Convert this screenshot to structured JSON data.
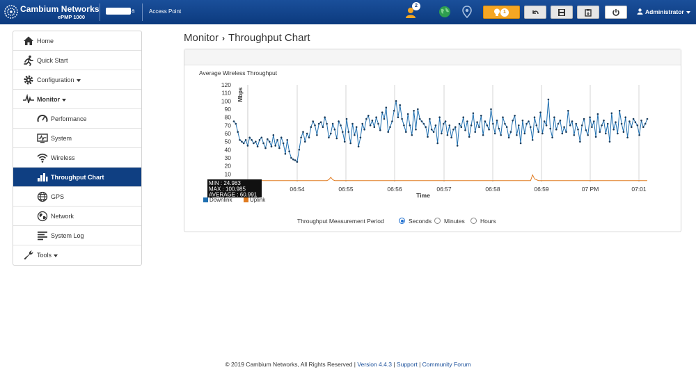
{
  "header": {
    "brand": "Cambium Networks",
    "model": "ePMP 1000",
    "device_name_tail": "a",
    "mode": "Access Point",
    "notification_count": "2",
    "alert_count": "1",
    "user": "Administrator"
  },
  "sidebar": {
    "items": [
      {
        "label": "Home",
        "icon": "home-icon",
        "level": "top"
      },
      {
        "label": "Quick Start",
        "icon": "running-man-icon",
        "level": "top"
      },
      {
        "label": "Configuration",
        "icon": "gear-icon",
        "level": "top",
        "dropdown": true
      },
      {
        "label": "Monitor",
        "icon": "pulse-icon",
        "level": "top",
        "dropdown": true
      },
      {
        "label": "Performance",
        "icon": "gauge-icon",
        "level": "sub"
      },
      {
        "label": "System",
        "icon": "system-monitor-icon",
        "level": "sub"
      },
      {
        "label": "Wireless",
        "icon": "wifi-icon",
        "level": "sub"
      },
      {
        "label": "Throughput Chart",
        "icon": "bar-chart-icon",
        "level": "sub",
        "active": true
      },
      {
        "label": "GPS",
        "icon": "globe-icon",
        "level": "sub"
      },
      {
        "label": "Network",
        "icon": "network-globe-icon",
        "level": "sub"
      },
      {
        "label": "System Log",
        "icon": "log-lines-icon",
        "level": "sub"
      },
      {
        "label": "Tools",
        "icon": "wrench-icon",
        "level": "top",
        "dropdown": true
      }
    ]
  },
  "breadcrumb": {
    "parent": "Monitor",
    "current": "Throughput Chart"
  },
  "chart_data": {
    "type": "line",
    "title": "Average Wireless Throughput",
    "xlabel": "Time",
    "ylabel": "Mbps",
    "ylim": [
      0,
      120
    ],
    "yticks": [
      10,
      20,
      30,
      40,
      50,
      60,
      70,
      80,
      90,
      100,
      110,
      120
    ],
    "xticks": [
      "06:54",
      "06:55",
      "06:56",
      "06:57",
      "06:58",
      "06:59",
      "07 PM",
      "07:01"
    ],
    "grid": "vertical",
    "legend_position": "bottom-left",
    "tooltip": {
      "min": "MIN : 24.983",
      "max": "MAX : 100.985",
      "avg": "AVERAGE : 60.991"
    },
    "series": [
      {
        "name": "Downlink",
        "color": "#1f6fb0",
        "values": [
          75,
          72,
          62,
          52,
          50,
          48,
          52,
          45,
          55,
          52,
          48,
          50,
          44,
          52,
          55,
          48,
          42,
          53,
          50,
          44,
          58,
          45,
          52,
          42,
          55,
          48,
          35,
          52,
          38,
          30,
          28,
          27,
          25,
          40,
          55,
          62,
          50,
          60,
          55,
          68,
          75,
          70,
          58,
          72,
          74,
          68,
          80,
          72,
          55,
          60,
          72,
          65,
          54,
          75,
          70,
          62,
          50,
          78,
          62,
          48,
          72,
          58,
          68,
          44,
          55,
          72,
          65,
          78,
          82,
          70,
          76,
          68,
          80,
          72,
          64,
          86,
          78,
          92,
          62,
          68,
          75,
          88,
          100,
          80,
          95,
          78,
          70,
          62,
          84,
          70,
          58,
          88,
          65,
          90,
          78,
          75,
          72,
          68,
          56,
          78,
          65,
          62,
          70,
          48,
          80,
          60,
          72,
          75,
          58,
          70,
          55,
          65,
          68,
          45,
          72,
          68,
          80,
          64,
          75,
          56,
          70,
          85,
          62,
          74,
          68,
          82,
          58,
          75,
          70,
          65,
          90,
          72,
          60,
          76,
          66,
          58,
          80,
          72,
          68,
          55,
          62,
          76,
          82,
          58,
          70,
          48,
          76,
          60,
          72,
          75,
          68,
          52,
          80,
          70,
          62,
          86,
          60,
          75,
          70,
          102,
          66,
          55,
          80,
          65,
          72,
          76,
          60,
          68,
          62,
          88,
          70,
          75,
          58,
          72,
          65,
          50,
          70,
          78,
          64,
          58,
          80,
          68,
          75,
          56,
          84,
          62,
          70,
          76,
          60,
          72,
          50,
          85,
          65,
          74,
          60,
          88,
          72,
          62,
          80,
          55,
          75,
          68,
          78,
          74,
          70,
          58,
          76,
          68,
          72,
          78
        ]
      },
      {
        "name": "Uplink",
        "color": "#e07b20",
        "values": [
          2,
          2,
          2,
          2,
          2,
          2,
          2,
          2,
          2,
          2,
          2,
          2,
          2,
          2,
          2,
          2,
          2,
          2,
          2,
          2,
          2,
          2,
          2,
          2,
          2,
          2,
          2,
          2,
          2,
          2,
          2,
          2,
          2,
          2,
          2,
          2,
          2,
          2,
          2,
          2,
          2,
          2,
          2,
          2,
          2,
          2,
          2,
          2,
          3,
          6,
          3,
          2,
          2,
          2,
          2,
          2,
          2,
          2,
          2,
          2,
          2,
          2,
          2,
          2,
          2,
          2,
          2,
          2,
          2,
          2,
          2,
          2,
          2,
          2,
          2,
          2,
          2,
          2,
          2,
          2,
          2,
          2,
          2,
          2,
          2,
          2,
          2,
          2,
          2,
          2,
          2,
          2,
          2,
          2,
          2,
          2,
          2,
          2,
          2,
          2,
          2,
          2,
          2,
          2,
          2,
          2,
          2,
          2,
          2,
          2,
          2,
          2,
          2,
          2,
          2,
          2,
          2,
          2,
          2,
          2,
          2,
          2,
          2,
          2,
          2,
          2,
          2,
          2,
          2,
          2,
          2,
          2,
          2,
          2,
          2,
          2,
          2,
          2,
          2,
          2,
          2,
          2,
          2,
          2,
          2,
          2,
          2,
          2,
          2,
          2,
          2,
          9,
          4,
          3,
          2,
          2,
          2,
          2,
          2,
          2,
          2,
          2,
          2,
          2,
          2,
          2,
          2,
          2,
          2,
          2,
          2,
          2,
          2,
          2,
          2,
          2,
          2,
          2,
          2,
          2,
          2,
          2,
          2,
          2,
          2,
          2,
          2,
          2,
          2,
          2,
          2,
          2,
          2,
          2,
          2,
          2,
          2,
          2,
          2,
          2,
          2,
          2,
          2,
          2,
          2,
          2,
          2,
          2,
          2,
          2
        ]
      }
    ]
  },
  "period": {
    "label": "Throughput Measurement Period",
    "options": [
      "Seconds",
      "Minutes",
      "Hours"
    ],
    "selected": "Seconds"
  },
  "footer": {
    "copyright": "© 2019 Cambium Networks, All Rights Reserved",
    "version": "Version 4.4.3",
    "support": "Support",
    "forum": "Community Forum"
  }
}
